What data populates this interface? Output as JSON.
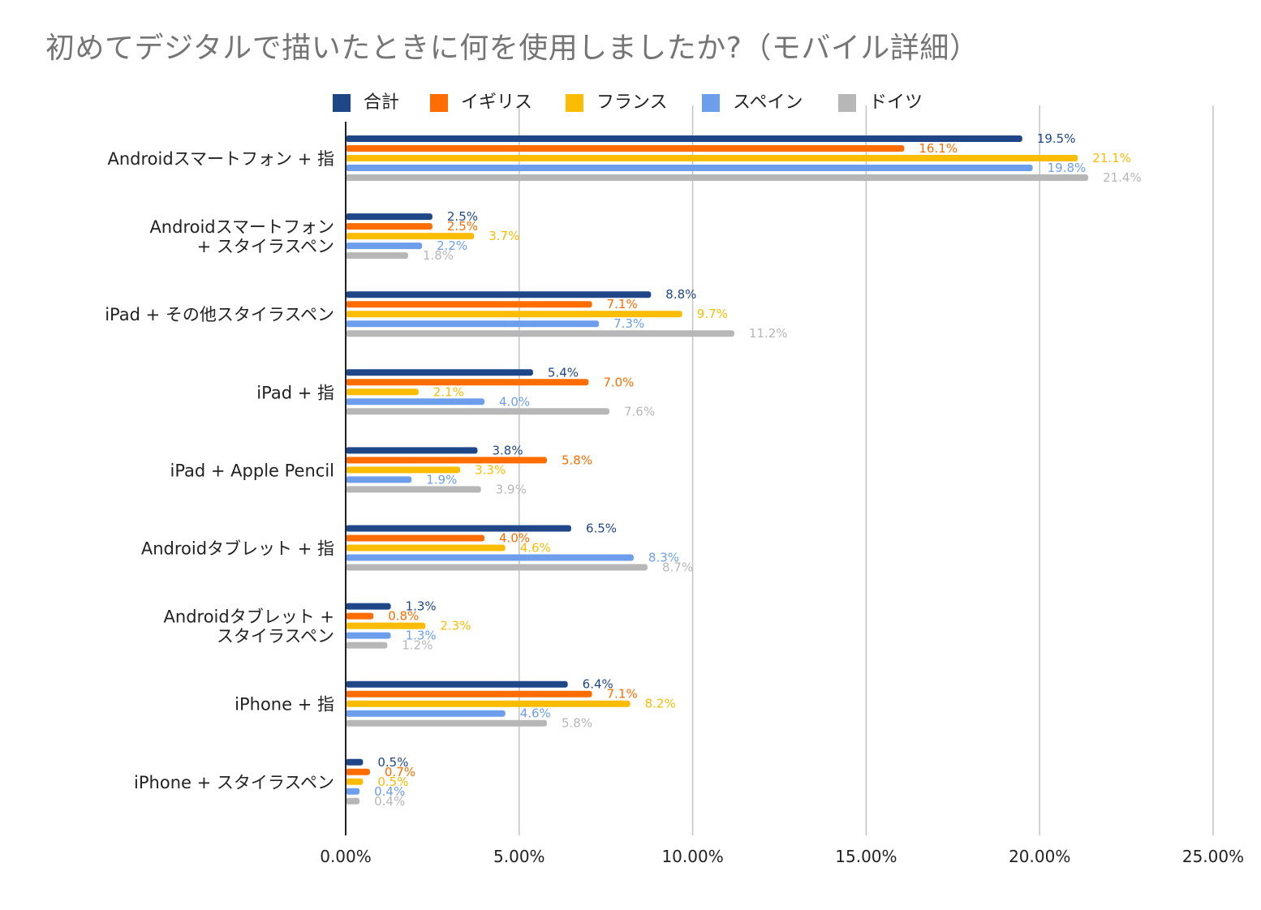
{
  "chart_data": {
    "type": "bar",
    "orientation": "horizontal",
    "title": "初めてデジタルで描いたときに何を使用しましたか?（モバイル詳細）",
    "xlabel": "",
    "ylabel": "",
    "xlim": [
      0,
      25
    ],
    "x_ticks": [
      "0.00%",
      "5.00%",
      "10.00%",
      "15.00%",
      "20.00%",
      "25.00%"
    ],
    "grid": true,
    "legend_position": "top",
    "categories": [
      [
        "Androidスマートフォン + 指"
      ],
      [
        "Androidスマートフォン",
        "+ スタイラスペン"
      ],
      [
        "iPad + その他スタイラスペン"
      ],
      [
        "iPad + 指"
      ],
      [
        "iPad + Apple Pencil"
      ],
      [
        "Androidタブレット + 指"
      ],
      [
        "Androidタブレット +",
        "スタイラスペン"
      ],
      [
        "iPhone +  指"
      ],
      [
        "iPhone + スタイラスペン"
      ]
    ],
    "series": [
      {
        "name": "合計",
        "color": "#1f4788",
        "values": [
          19.5,
          2.5,
          8.8,
          5.4,
          3.8,
          6.5,
          1.3,
          6.4,
          0.5
        ],
        "labels": [
          "19.5%",
          "2.5%",
          "8.8%",
          "5.4%",
          "3.8%",
          "6.5%",
          "1.3%",
          "6.4%",
          "0.5%"
        ]
      },
      {
        "name": "イギリス",
        "color": "#ff6d01",
        "values": [
          16.1,
          2.5,
          7.1,
          7.0,
          5.8,
          4.0,
          0.8,
          7.1,
          0.7
        ],
        "labels": [
          "16.1%",
          "2.5%",
          "7.1%",
          "7.0%",
          "5.8%",
          "4.0%",
          "0.8%",
          "7.1%",
          "0.7%"
        ]
      },
      {
        "name": "フランス",
        "color": "#fbbc04",
        "values": [
          21.1,
          3.7,
          9.7,
          2.1,
          3.3,
          4.6,
          2.3,
          8.2,
          0.5
        ],
        "labels": [
          "21.1%",
          "3.7%",
          "9.7%",
          "2.1%",
          "3.3%",
          "4.6%",
          "2.3%",
          "8.2%",
          "0.5%"
        ]
      },
      {
        "name": "スペイン",
        "color": "#6d9eeb",
        "values": [
          19.8,
          2.2,
          7.3,
          4.0,
          1.9,
          8.3,
          1.3,
          4.6,
          0.4
        ],
        "labels": [
          "19.8%",
          "2.2%",
          "7.3%",
          "4.0%",
          "1.9%",
          "8.3%",
          "1.3%",
          "4.6%",
          "0.4%"
        ]
      },
      {
        "name": "ドイツ",
        "color": "#b7b7b7",
        "values": [
          21.4,
          1.8,
          11.2,
          7.6,
          3.9,
          8.7,
          1.2,
          5.8,
          0.4
        ],
        "labels": [
          "21.4%",
          "1.8%",
          "11.2%",
          "7.6%",
          "3.9%",
          "8.7%",
          "1.2%",
          "5.8%",
          "0.4%"
        ]
      }
    ]
  }
}
